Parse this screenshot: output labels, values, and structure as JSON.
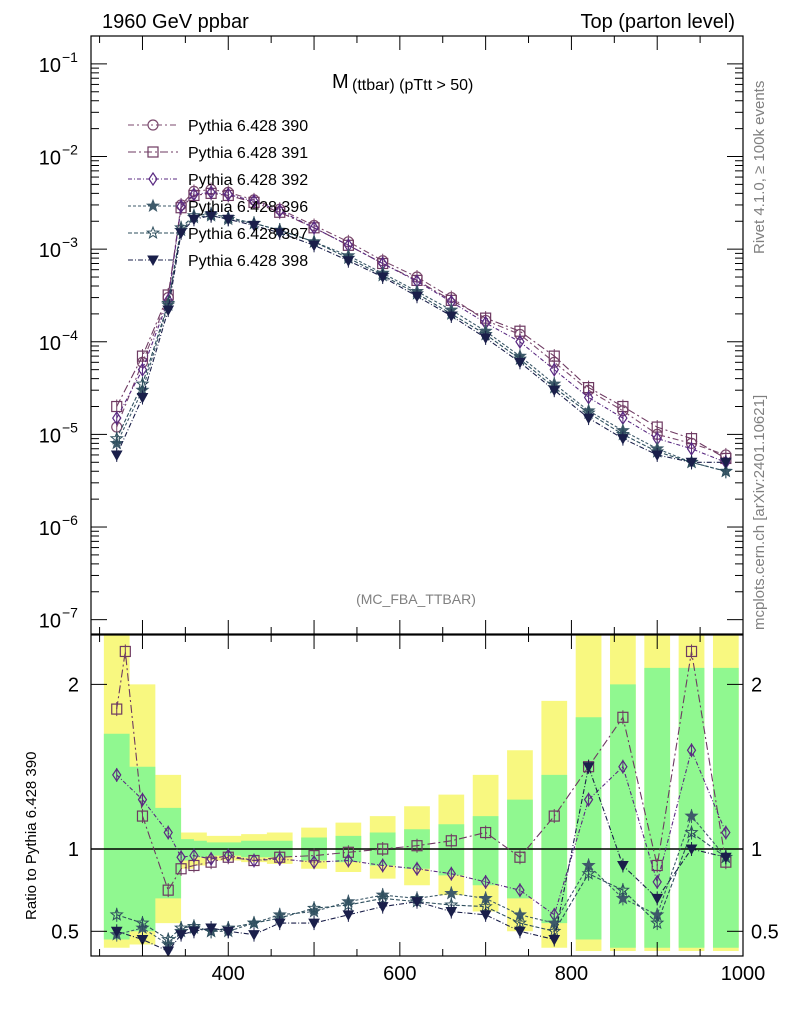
{
  "header": {
    "left": "1960 GeV ppbar",
    "right": "Top (parton level)"
  },
  "side_labels": {
    "rivet": "Rivet 4.1.0, ≥ 100k events",
    "mcplots": "mcplots.cern.ch [arXiv:2401.10621]"
  },
  "colors": {
    "band_inner": "#90f890",
    "band_outer": "#f8f880",
    "reference_line": "#000000"
  },
  "chart_data": [
    {
      "type": "line",
      "panel": "main",
      "title_main": "M",
      "title_sub": "(ttbar) (pTtt > 50)",
      "analysis_label": "(MC_FBA_TTBAR)",
      "yscale": "log",
      "xlim": [
        240,
        1000
      ],
      "ylim": [
        7e-08,
        0.2
      ],
      "yticks": [
        {
          "value": 1e-07,
          "label": "10",
          "exp": "−7"
        },
        {
          "value": 1e-06,
          "label": "10",
          "exp": "−6"
        },
        {
          "value": 1e-05,
          "label": "10",
          "exp": "−5"
        },
        {
          "value": 0.0001,
          "label": "10",
          "exp": "−4"
        },
        {
          "value": 0.001,
          "label": "10",
          "exp": "−3"
        },
        {
          "value": 0.01,
          "label": "10",
          "exp": "−2"
        },
        {
          "value": 0.1,
          "label": "10",
          "exp": "−1"
        }
      ],
      "legend_position": "top-left",
      "series": [
        {
          "name": "Pythia 6.428 390",
          "color": "#7b4a6e",
          "marker": "circle",
          "dash": "6,3,2,3",
          "x": [
            270,
            300,
            330,
            345,
            360,
            380,
            400,
            430,
            460,
            500,
            540,
            580,
            620,
            660,
            700,
            740,
            780,
            820,
            860,
            900,
            940,
            980
          ],
          "y": [
            1.2e-05,
            6e-05,
            0.0003,
            0.003,
            0.0042,
            0.0044,
            0.0041,
            0.0034,
            0.0027,
            0.0018,
            0.0012,
            0.00075,
            0.0005,
            0.0003,
            0.00017,
            0.00012,
            6e-05,
            3e-05,
            1.8e-05,
            1e-05,
            8e-06,
            6e-06
          ]
        },
        {
          "name": "Pythia 6.428 391",
          "color": "#6e3a62",
          "marker": "square",
          "dash": "8,3,2,3",
          "x": [
            270,
            300,
            330,
            345,
            360,
            380,
            400,
            430,
            460,
            500,
            540,
            580,
            620,
            660,
            700,
            740,
            780,
            820,
            860,
            900,
            940,
            980
          ],
          "y": [
            2e-05,
            7e-05,
            0.00032,
            0.0028,
            0.0038,
            0.004,
            0.0038,
            0.0032,
            0.0025,
            0.0017,
            0.0011,
            0.0007,
            0.00046,
            0.00028,
            0.00018,
            0.00013,
            7e-05,
            3.2e-05,
            2e-05,
            1.2e-05,
            9e-06,
            5.5e-06
          ]
        },
        {
          "name": "Pythia 6.428 392",
          "color": "#5a2a82",
          "marker": "diamond",
          "dash": "4,2,1,2",
          "x": [
            270,
            300,
            330,
            345,
            360,
            380,
            400,
            430,
            460,
            500,
            540,
            580,
            620,
            660,
            700,
            740,
            780,
            820,
            860,
            900,
            940,
            980
          ],
          "y": [
            1.5e-05,
            5e-05,
            0.00028,
            0.0029,
            0.0039,
            0.0041,
            0.0039,
            0.0033,
            0.0026,
            0.0017,
            0.0011,
            0.0007,
            0.00045,
            0.00027,
            0.00016,
            0.0001,
            5e-05,
            2.5e-05,
            1.5e-05,
            9e-06,
            7e-06,
            5e-06
          ]
        },
        {
          "name": "Pythia 6.428 396",
          "color": "#3e5a6a",
          "marker": "star",
          "dash": "3,2",
          "x": [
            270,
            300,
            330,
            345,
            360,
            380,
            400,
            430,
            460,
            500,
            540,
            580,
            620,
            660,
            700,
            740,
            780,
            820,
            860,
            900,
            940,
            980
          ],
          "y": [
            8e-06,
            3e-05,
            0.00025,
            0.0016,
            0.0022,
            0.0023,
            0.0021,
            0.0019,
            0.0016,
            0.0012,
            0.00085,
            0.00055,
            0.00035,
            0.00022,
            0.00013,
            7e-05,
            3.5e-05,
            1.8e-05,
            1.1e-05,
            7e-06,
            5e-06,
            4e-06
          ]
        },
        {
          "name": "Pythia 6.428 397",
          "color": "#2e4f5e",
          "marker": "star-open",
          "dash": "4,2",
          "x": [
            270,
            300,
            330,
            345,
            360,
            380,
            400,
            430,
            460,
            500,
            540,
            580,
            620,
            660,
            700,
            740,
            780,
            820,
            860,
            900,
            940,
            980
          ],
          "y": [
            9e-06,
            3.5e-05,
            0.00026,
            0.0017,
            0.0023,
            0.0024,
            0.0022,
            0.0019,
            0.0016,
            0.0012,
            0.0008,
            0.00052,
            0.00033,
            0.0002,
            0.00012,
            6.5e-05,
            3.2e-05,
            1.7e-05,
            1e-05,
            6.5e-06,
            5e-06,
            4e-06
          ]
        },
        {
          "name": "Pythia 6.428 398",
          "color": "#1a1f4a",
          "marker": "triangle-down",
          "dash": "5,2,1,2",
          "x": [
            270,
            300,
            330,
            345,
            360,
            380,
            400,
            430,
            460,
            500,
            540,
            580,
            620,
            660,
            700,
            740,
            780,
            820,
            860,
            900,
            940,
            980
          ],
          "y": [
            6e-06,
            2.5e-05,
            0.00022,
            0.0015,
            0.0021,
            0.0023,
            0.0021,
            0.0018,
            0.0015,
            0.0011,
            0.00075,
            0.0005,
            0.00031,
            0.00019,
            0.00011,
            6e-05,
            3e-05,
            1.5e-05,
            9e-06,
            6e-06,
            5e-06,
            5e-06
          ]
        }
      ]
    },
    {
      "type": "line",
      "panel": "ratio",
      "ylabel": "Ratio to Pythia 6.428 390",
      "xlim": [
        240,
        1000
      ],
      "ylim": [
        0.35,
        2.3
      ],
      "xticks": [
        400,
        600,
        800,
        1000
      ],
      "yticks": [
        0.5,
        1,
        2
      ],
      "band": {
        "x": [
          270,
          300,
          330,
          345,
          360,
          380,
          400,
          430,
          460,
          500,
          540,
          580,
          620,
          660,
          700,
          740,
          780,
          820,
          860,
          900,
          940,
          980
        ],
        "inner_low": [
          0.45,
          0.5,
          0.7,
          0.93,
          0.95,
          0.96,
          0.96,
          0.95,
          0.95,
          0.93,
          0.92,
          0.9,
          0.88,
          0.84,
          0.78,
          0.7,
          0.55,
          0.45,
          0.4,
          0.4,
          0.4,
          0.4
        ],
        "inner_high": [
          1.7,
          1.5,
          1.25,
          1.06,
          1.05,
          1.04,
          1.04,
          1.05,
          1.05,
          1.07,
          1.08,
          1.1,
          1.12,
          1.15,
          1.2,
          1.3,
          1.45,
          1.8,
          2.0,
          2.1,
          2.1,
          2.1
        ],
        "outer_low": [
          0.4,
          0.42,
          0.55,
          0.88,
          0.9,
          0.93,
          0.93,
          0.92,
          0.91,
          0.88,
          0.86,
          0.82,
          0.78,
          0.72,
          0.62,
          0.5,
          0.4,
          0.38,
          0.38,
          0.38,
          0.38,
          0.38
        ],
        "outer_high": [
          2.3,
          2.0,
          1.45,
          1.1,
          1.1,
          1.08,
          1.08,
          1.09,
          1.1,
          1.13,
          1.16,
          1.2,
          1.26,
          1.33,
          1.45,
          1.6,
          1.9,
          2.3,
          2.3,
          2.3,
          2.3,
          2.3
        ]
      },
      "series": [
        {
          "name": "Pythia 6.428 391",
          "color": "#6e3a62",
          "marker": "square",
          "dash": "8,3,2,3",
          "x": [
            270,
            280,
            300,
            330,
            345,
            360,
            380,
            400,
            430,
            460,
            500,
            540,
            580,
            620,
            660,
            700,
            740,
            780,
            820,
            860,
            900,
            940,
            980
          ],
          "y": [
            1.85,
            2.2,
            1.2,
            0.75,
            0.88,
            0.9,
            0.92,
            0.95,
            0.93,
            0.95,
            0.96,
            0.98,
            1.0,
            1.02,
            1.05,
            1.1,
            0.95,
            1.2,
            1.5,
            1.8,
            0.9,
            2.2,
            0.92
          ]
        },
        {
          "name": "Pythia 6.428 392",
          "color": "#5a2a82",
          "marker": "diamond",
          "dash": "4,2,1,2",
          "x": [
            270,
            300,
            330,
            345,
            360,
            380,
            400,
            430,
            460,
            500,
            540,
            580,
            620,
            660,
            700,
            740,
            780,
            820,
            860,
            900,
            940,
            980
          ],
          "y": [
            1.45,
            1.3,
            1.1,
            0.95,
            0.96,
            0.94,
            0.96,
            0.93,
            0.94,
            0.92,
            0.93,
            0.9,
            0.88,
            0.85,
            0.8,
            0.75,
            0.6,
            1.3,
            1.5,
            0.8,
            1.6,
            1.1
          ]
        },
        {
          "name": "Pythia 6.428 396",
          "color": "#3e5a6a",
          "marker": "star",
          "dash": "3,2",
          "x": [
            270,
            300,
            330,
            345,
            360,
            380,
            400,
            430,
            460,
            500,
            540,
            580,
            620,
            660,
            700,
            740,
            780,
            820,
            860,
            900,
            940,
            980
          ],
          "y": [
            0.48,
            0.52,
            0.42,
            0.5,
            0.52,
            0.5,
            0.5,
            0.55,
            0.6,
            0.62,
            0.68,
            0.72,
            0.7,
            0.73,
            0.7,
            0.6,
            0.55,
            0.9,
            0.7,
            0.6,
            1.2,
            0.95
          ]
        },
        {
          "name": "Pythia 6.428 397",
          "color": "#2e4f5e",
          "marker": "star-open",
          "dash": "4,2",
          "x": [
            270,
            300,
            330,
            345,
            360,
            380,
            400,
            430,
            460,
            500,
            540,
            580,
            620,
            660,
            700,
            740,
            780,
            820,
            860,
            900,
            940,
            980
          ],
          "y": [
            0.6,
            0.55,
            0.45,
            0.52,
            0.53,
            0.5,
            0.52,
            0.55,
            0.58,
            0.64,
            0.66,
            0.7,
            0.68,
            0.66,
            0.65,
            0.55,
            0.5,
            0.85,
            0.75,
            0.55,
            1.1,
            0.95
          ]
        },
        {
          "name": "Pythia 6.428 398",
          "color": "#1a1f4a",
          "marker": "triangle-down",
          "dash": "5,2,1,2",
          "x": [
            270,
            300,
            330,
            345,
            360,
            380,
            400,
            430,
            460,
            500,
            540,
            580,
            620,
            660,
            700,
            740,
            780,
            820,
            860,
            900,
            940,
            980
          ],
          "y": [
            0.5,
            0.45,
            0.38,
            0.48,
            0.5,
            0.52,
            0.5,
            0.48,
            0.55,
            0.55,
            0.6,
            0.65,
            0.68,
            0.62,
            0.6,
            0.5,
            0.45,
            1.5,
            0.9,
            0.7,
            1.0,
            0.95
          ]
        }
      ]
    }
  ]
}
